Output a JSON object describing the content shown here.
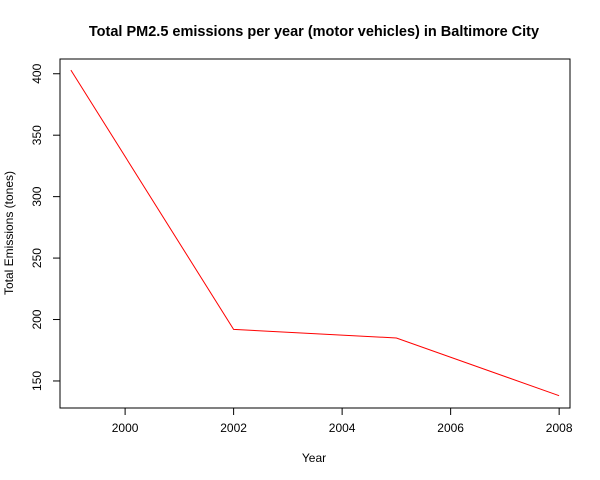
{
  "chart_data": {
    "type": "line",
    "title": "Total PM2.5 emissions per year (motor vehicles) in Baltimore City",
    "xlabel": "Year",
    "ylabel": "Total Emissions (tones)",
    "xlim": [
      1998.8,
      2008.2
    ],
    "ylim": [
      128,
      412
    ],
    "x_ticks": [
      2000,
      2002,
      2004,
      2006,
      2008
    ],
    "y_ticks": [
      150,
      200,
      250,
      300,
      350,
      400
    ],
    "grid": false,
    "legend": "none",
    "series": [
      {
        "color": "#ff0000",
        "x": [
          1999,
          2002,
          2005,
          2008
        ],
        "y": [
          403,
          192,
          185,
          138
        ]
      }
    ]
  }
}
